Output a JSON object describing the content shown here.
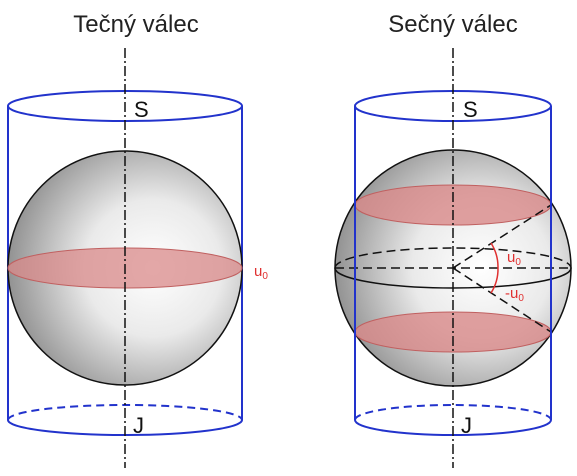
{
  "left": {
    "title": "Tečný válec",
    "north": "S",
    "south": "J",
    "angle": {
      "symbol": "u",
      "subscript": "0"
    }
  },
  "right": {
    "title": "Sečný válec",
    "north": "S",
    "south": "J",
    "angle_upper": {
      "symbol": "u",
      "subscript": "0"
    },
    "angle_lower": {
      "symbol": "-u",
      "subscript": "0"
    }
  }
}
